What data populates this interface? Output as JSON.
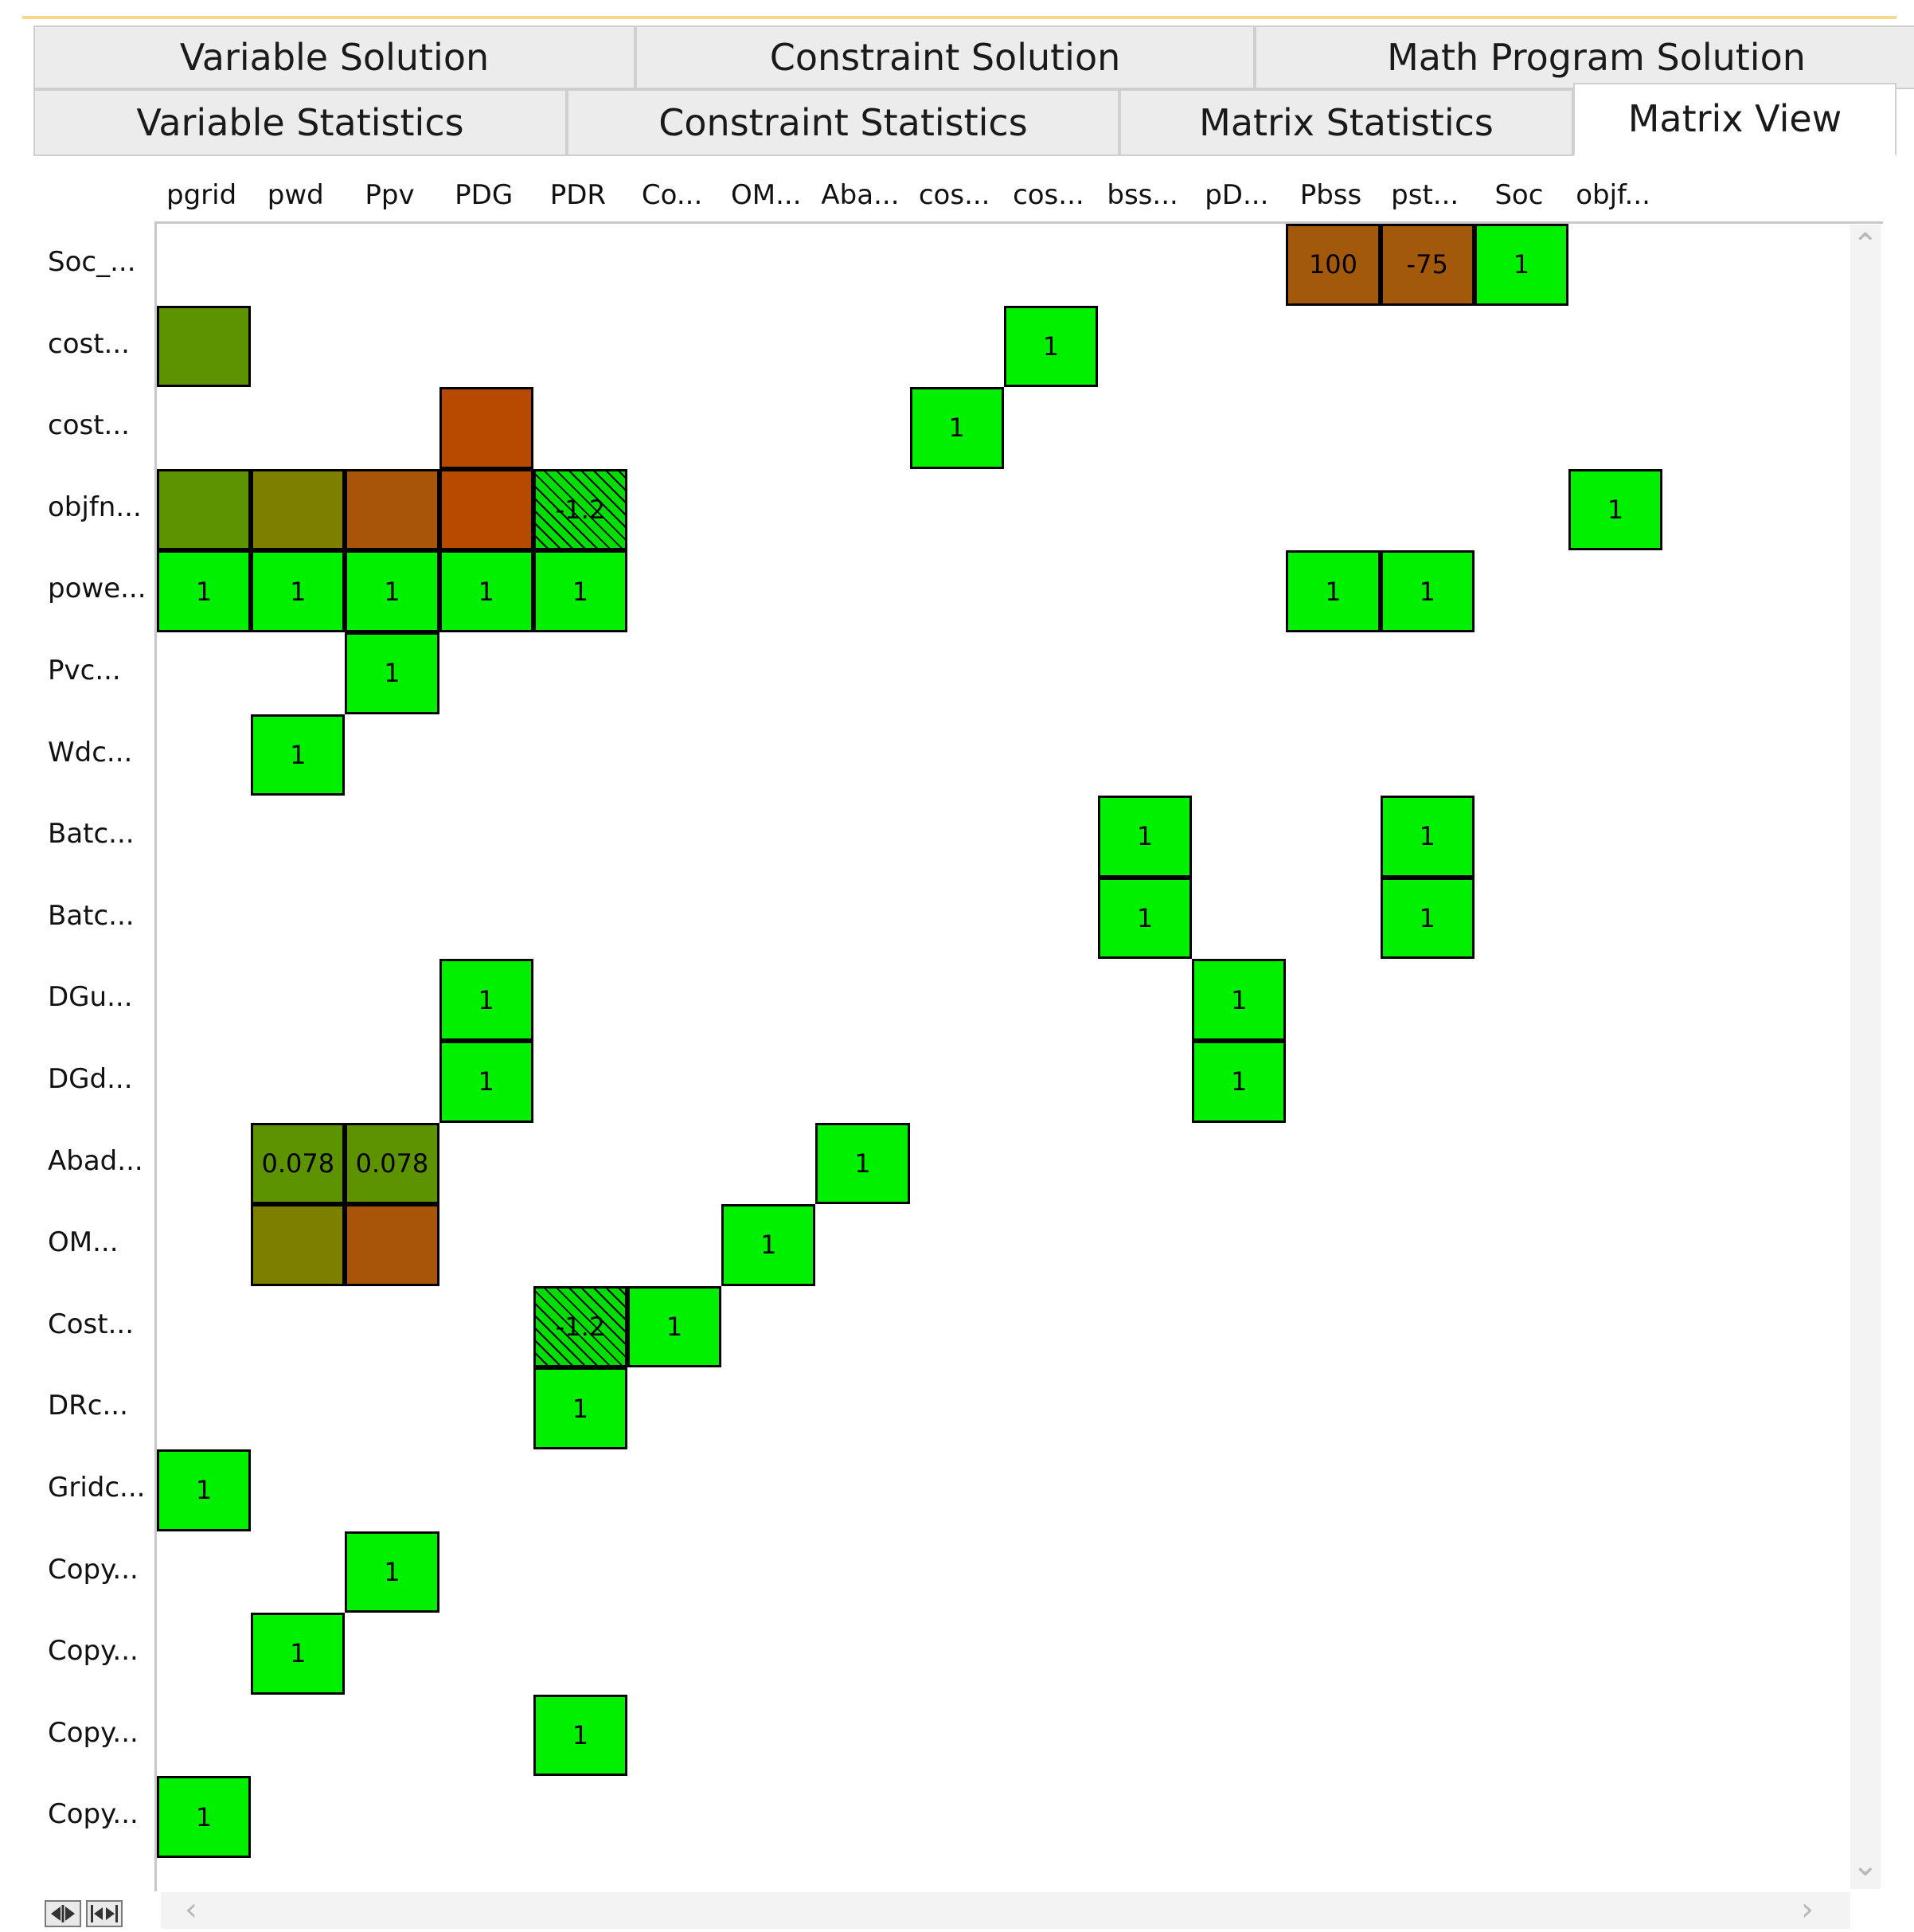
{
  "tabs_row1": [
    {
      "label": "Variable Solution"
    },
    {
      "label": "Constraint Solution"
    },
    {
      "label": "Math Program Solution"
    }
  ],
  "tabs_row2": [
    {
      "label": "Variable Statistics"
    },
    {
      "label": "Constraint Statistics"
    },
    {
      "label": "Matrix Statistics"
    },
    {
      "label": "Matrix View",
      "active": true
    }
  ],
  "columns": [
    "pgrid",
    "pwd",
    "Ppv",
    "PDG",
    "PDR",
    "Co...",
    "OM...",
    "Aba...",
    "cos...",
    "cos...",
    "bss...",
    "pD...",
    "Pbss",
    "pst...",
    "Soc",
    "objf..."
  ],
  "rows": [
    "Soc_...",
    "cost...",
    "cost...",
    "objfn...",
    "powe...",
    "Pvc...",
    "Wdc...",
    "Batc...",
    "Batc...",
    "DGu...",
    "DGd...",
    "Abad...",
    "OM...",
    "Cost...",
    "DRc...",
    "Gridc...",
    "Copy...",
    "Copy...",
    "Copy...",
    "Copy..."
  ],
  "colors": {
    "green": "#00f000",
    "olive_green": "#5e9300",
    "olive": "#7d7f00",
    "brown_orange": "#a8550a",
    "rust": "#b84a00",
    "brown": "#a2590c",
    "hatch_bg": "#00dd00",
    "hatch_line": "#000000"
  },
  "cells": [
    {
      "r": 0,
      "c": 12,
      "text": "100",
      "color": "brown"
    },
    {
      "r": 0,
      "c": 13,
      "text": "-75",
      "color": "brown"
    },
    {
      "r": 0,
      "c": 14,
      "text": "1",
      "color": "green"
    },
    {
      "r": 1,
      "c": 0,
      "text": "",
      "color": "olive_green"
    },
    {
      "r": 1,
      "c": 9,
      "text": "1",
      "color": "green"
    },
    {
      "r": 2,
      "c": 3,
      "text": "",
      "color": "rust"
    },
    {
      "r": 2,
      "c": 8,
      "text": "1",
      "color": "green"
    },
    {
      "r": 3,
      "c": 0,
      "text": "",
      "color": "olive_green"
    },
    {
      "r": 3,
      "c": 1,
      "text": "",
      "color": "olive"
    },
    {
      "r": 3,
      "c": 2,
      "text": "",
      "color": "brown_orange"
    },
    {
      "r": 3,
      "c": 3,
      "text": "",
      "color": "rust"
    },
    {
      "r": 3,
      "c": 4,
      "text": "-1.2",
      "color": "hatched"
    },
    {
      "r": 3,
      "c": 15,
      "text": "1",
      "color": "green"
    },
    {
      "r": 4,
      "c": 0,
      "text": "1",
      "color": "green"
    },
    {
      "r": 4,
      "c": 1,
      "text": "1",
      "color": "green"
    },
    {
      "r": 4,
      "c": 2,
      "text": "1",
      "color": "green"
    },
    {
      "r": 4,
      "c": 3,
      "text": "1",
      "color": "green"
    },
    {
      "r": 4,
      "c": 4,
      "text": "1",
      "color": "green"
    },
    {
      "r": 4,
      "c": 12,
      "text": "1",
      "color": "green"
    },
    {
      "r": 4,
      "c": 13,
      "text": "1",
      "color": "green"
    },
    {
      "r": 5,
      "c": 2,
      "text": "1",
      "color": "green"
    },
    {
      "r": 6,
      "c": 1,
      "text": "1",
      "color": "green"
    },
    {
      "r": 7,
      "c": 10,
      "text": "1",
      "color": "green"
    },
    {
      "r": 7,
      "c": 13,
      "text": "1",
      "color": "green"
    },
    {
      "r": 8,
      "c": 10,
      "text": "1",
      "color": "green"
    },
    {
      "r": 8,
      "c": 13,
      "text": "1",
      "color": "green"
    },
    {
      "r": 9,
      "c": 3,
      "text": "1",
      "color": "green"
    },
    {
      "r": 9,
      "c": 11,
      "text": "1",
      "color": "green"
    },
    {
      "r": 10,
      "c": 3,
      "text": "1",
      "color": "green"
    },
    {
      "r": 10,
      "c": 11,
      "text": "1",
      "color": "green"
    },
    {
      "r": 11,
      "c": 1,
      "text": "0.078",
      "color": "olive_green"
    },
    {
      "r": 11,
      "c": 2,
      "text": "0.078",
      "color": "olive_green"
    },
    {
      "r": 11,
      "c": 7,
      "text": "1",
      "color": "green"
    },
    {
      "r": 12,
      "c": 1,
      "text": "",
      "color": "olive"
    },
    {
      "r": 12,
      "c": 2,
      "text": "",
      "color": "brown_orange"
    },
    {
      "r": 12,
      "c": 6,
      "text": "1",
      "color": "green"
    },
    {
      "r": 13,
      "c": 4,
      "text": "-1.2",
      "color": "hatched"
    },
    {
      "r": 13,
      "c": 5,
      "text": "1",
      "color": "green"
    },
    {
      "r": 14,
      "c": 4,
      "text": "1",
      "color": "green"
    },
    {
      "r": 15,
      "c": 0,
      "text": "1",
      "color": "green"
    },
    {
      "r": 16,
      "c": 2,
      "text": "1",
      "color": "green"
    },
    {
      "r": 17,
      "c": 1,
      "text": "1",
      "color": "green"
    },
    {
      "r": 18,
      "c": 4,
      "text": "1",
      "color": "green"
    },
    {
      "r": 19,
      "c": 0,
      "text": "1",
      "color": "green"
    }
  ],
  "icons": {
    "scroll_up": "chevron-up-icon",
    "scroll_down": "chevron-down-icon",
    "scroll_left": "chevron-left-icon",
    "scroll_right": "chevron-right-icon",
    "fit_columns": "fit-columns-icon",
    "fit_all": "fit-all-icon"
  }
}
